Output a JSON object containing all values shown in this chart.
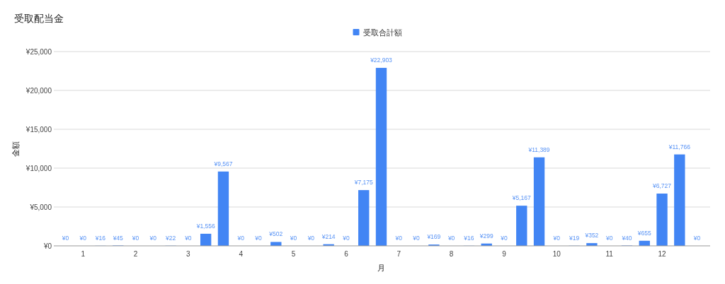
{
  "chart_data": {
    "type": "bar",
    "title": "受取配当金",
    "xlabel": "月",
    "ylabel": "金額",
    "categories": [
      null,
      "1",
      null,
      null,
      "2",
      null,
      null,
      "3",
      null,
      null,
      "4",
      null,
      null,
      "5",
      null,
      null,
      "6",
      null,
      null,
      "7",
      null,
      null,
      "8",
      null,
      null,
      "9",
      null,
      null,
      "10",
      null,
      null,
      "11",
      null,
      null,
      "12",
      null,
      null
    ],
    "series": [
      {
        "name": "受取合計額",
        "color": "#4285f4",
        "values": [
          0,
          0,
          16,
          45,
          0,
          0,
          22,
          0,
          1556,
          9567,
          0,
          0,
          502,
          0,
          0,
          214,
          0,
          7175,
          22903,
          0,
          0,
          169,
          0,
          16,
          299,
          0,
          5167,
          11389,
          0,
          19,
          352,
          0,
          40,
          655,
          6727,
          11766,
          0
        ],
        "value_labels": [
          "¥0",
          "¥0",
          "¥16",
          "¥45",
          "¥0",
          "¥0",
          "¥22",
          "¥0",
          "¥1,556",
          "¥9,567",
          "¥0",
          "¥0",
          "¥502",
          "¥0",
          "¥0",
          "¥214",
          "¥0",
          "¥7,175",
          "¥22,903",
          "¥0",
          "¥0",
          "¥169",
          "¥0",
          "¥16",
          "¥299",
          "¥0",
          "¥5,167",
          "¥11,389",
          "¥0",
          "¥19",
          "¥352",
          "¥0",
          "¥40",
          "¥655",
          "¥6,727",
          "¥11,766",
          "¥0"
        ]
      }
    ],
    "ylim": [
      0,
      25000
    ],
    "yticks": [
      {
        "value": 0,
        "label": "¥0"
      },
      {
        "value": 5000,
        "label": "¥5,000"
      },
      {
        "value": 10000,
        "label": "¥10,000"
      },
      {
        "value": 15000,
        "label": "¥15,000"
      },
      {
        "value": 20000,
        "label": "¥20,000"
      },
      {
        "value": 25000,
        "label": "¥25,000"
      }
    ],
    "grid": "y",
    "legend": "top"
  }
}
